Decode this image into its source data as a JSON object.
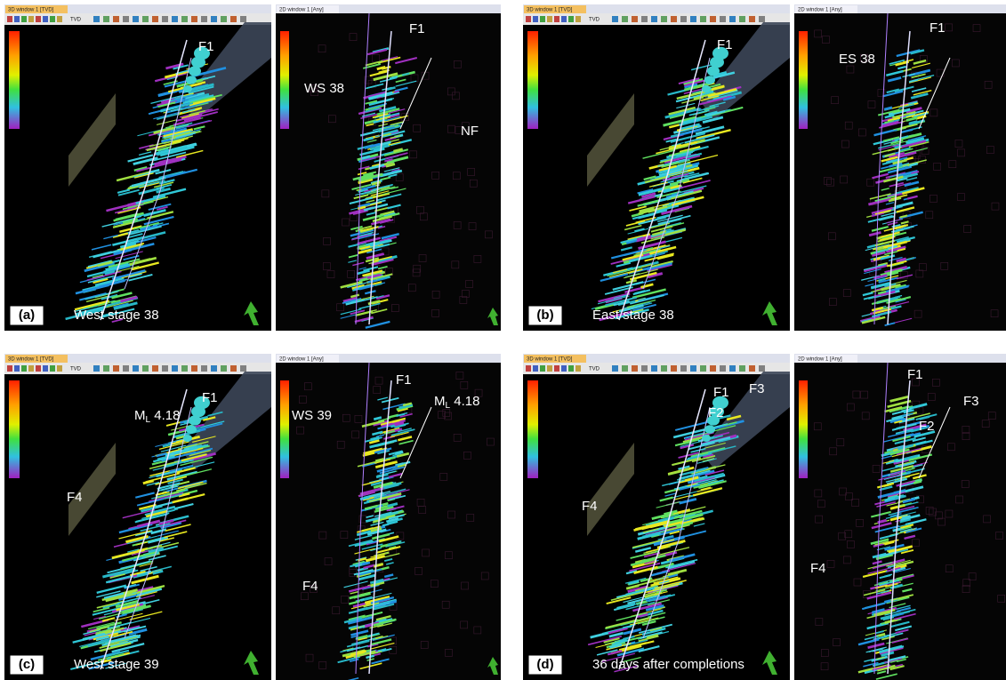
{
  "panels": [
    {
      "label": "(a)",
      "caption": "West stage 38",
      "window3d": {
        "tab": "3D window 1 [TVD]",
        "toolbar": "TVD",
        "annotations": [
          {
            "text": "F1"
          }
        ]
      },
      "window2d": {
        "tab": "2D window 1 [Any]",
        "annotations": [
          {
            "text": "F1"
          },
          {
            "text": "WS 38"
          },
          {
            "text": "NF"
          }
        ]
      }
    },
    {
      "label": "(b)",
      "caption": "East stage 38",
      "window3d": {
        "tab": "3D window 1 [TVD]",
        "toolbar": "TVD",
        "annotations": [
          {
            "text": "F1"
          }
        ]
      },
      "window2d": {
        "tab": "2D window 1 [Any]",
        "annotations": [
          {
            "text": "F1"
          },
          {
            "text": "ES 38"
          }
        ]
      }
    },
    {
      "label": "(c)",
      "caption": "West stage 39",
      "window3d": {
        "tab": "3D window 1 [TVD]",
        "toolbar": "TVD",
        "annotations": [
          {
            "text": "F1"
          },
          {
            "text": "M",
            "subscript": "L",
            "suffix": " 4.18"
          },
          {
            "text": "F4"
          }
        ]
      },
      "window2d": {
        "tab": "2D window 1 [Any]",
        "annotations": [
          {
            "text": "F1"
          },
          {
            "text": "M",
            "subscript": "L",
            "suffix": " 4.18"
          },
          {
            "text": "WS 39"
          },
          {
            "text": "F4"
          }
        ]
      }
    },
    {
      "label": "(d)",
      "caption": "36 days after completions",
      "window3d": {
        "tab": "3D window 1 [TVD]",
        "toolbar": "TVD",
        "annotations": [
          {
            "text": "F1"
          },
          {
            "text": "F3"
          },
          {
            "text": "F2"
          },
          {
            "text": "F4"
          }
        ]
      },
      "window2d": {
        "tab": "2D window 1 [Any]",
        "annotations": [
          {
            "text": "F1"
          },
          {
            "text": "F3"
          },
          {
            "text": "F2"
          },
          {
            "text": "F4"
          }
        ]
      }
    }
  ]
}
